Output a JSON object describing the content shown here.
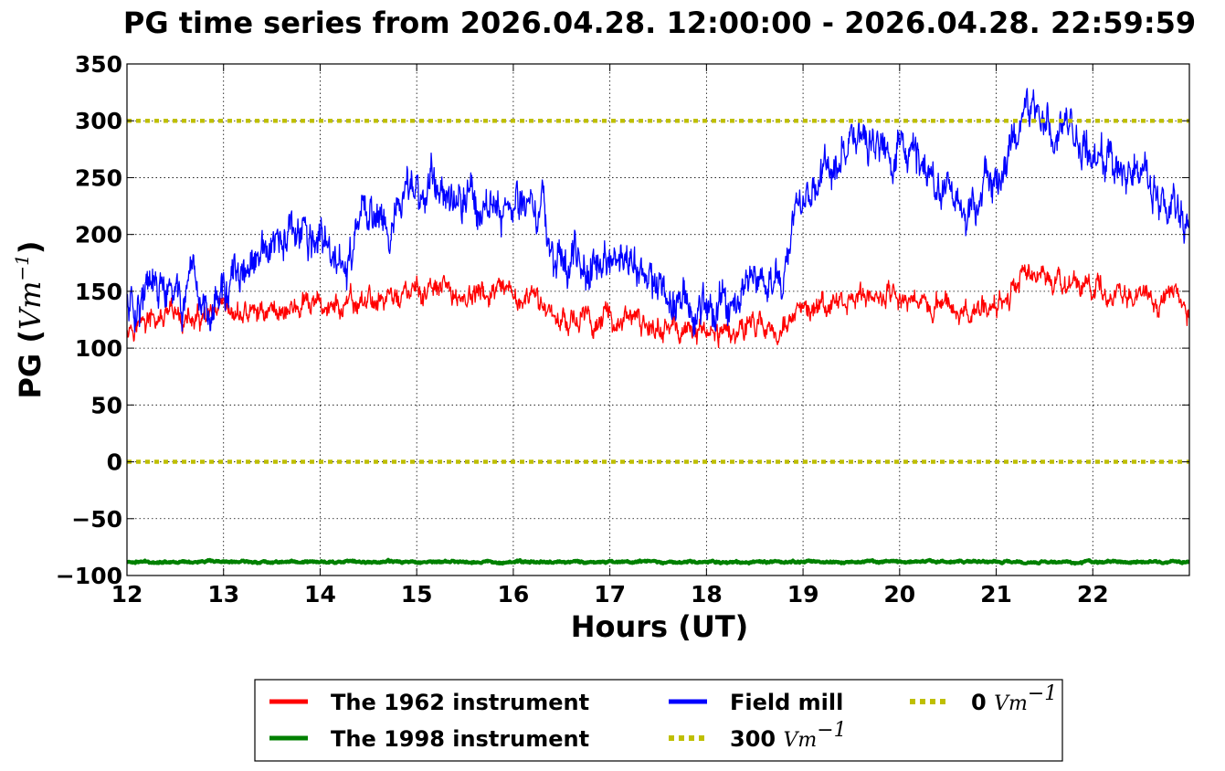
{
  "colors": {
    "instrument_1962": "#ff0000",
    "instrument_1998": "#008000",
    "field_mill": "#0000ff",
    "reference_lines": "#bfbf00",
    "grid": "#000000",
    "axes": "#000000"
  },
  "chart_data": {
    "type": "line",
    "title": "PG time series from 2026.04.28. 12:00:00 - 2026.04.28. 22:59:59",
    "xlabel": "Hours (UT)",
    "ylabel": {
      "text": "PG (",
      "unit_base": "Vm",
      "unit_exp": "−1",
      "close": ")"
    },
    "xlim": [
      12,
      23
    ],
    "ylim": [
      -100,
      350
    ],
    "x_ticks": [
      12,
      13,
      14,
      15,
      16,
      17,
      18,
      19,
      20,
      21,
      22
    ],
    "y_ticks": [
      -100,
      -50,
      0,
      50,
      100,
      150,
      200,
      250,
      300,
      350
    ],
    "y_tick_labels": [
      "−100",
      "−50",
      "0",
      "50",
      "100",
      "150",
      "200",
      "250",
      "300",
      "350"
    ],
    "grid": true,
    "legend_placement": "below chart, 3 columns",
    "legend": [
      {
        "label": "The 1962 instrument",
        "unit": "",
        "series": "instrument_1962",
        "style": "solid"
      },
      {
        "label": "The 1998 instrument",
        "unit": "",
        "series": "instrument_1998",
        "style": "solid"
      },
      {
        "label": "Field mill",
        "unit": "",
        "series": "field_mill",
        "style": "solid"
      },
      {
        "label": "300 ",
        "unit": "Vm",
        "unit_exp": "−1",
        "series": "ref_300",
        "style": "dotted"
      },
      {
        "label": "0 ",
        "unit": "Vm",
        "unit_exp": "−1",
        "series": "ref_0",
        "style": "dotted"
      }
    ],
    "series": [
      {
        "name": "The 1962 instrument",
        "key": "instrument_1962",
        "noise": 9,
        "points": [
          [
            12.0,
            122
          ],
          [
            12.25,
            123
          ],
          [
            12.5,
            126
          ],
          [
            12.75,
            122
          ],
          [
            13.0,
            127
          ],
          [
            13.25,
            130
          ],
          [
            13.5,
            134
          ],
          [
            13.75,
            135
          ],
          [
            14.0,
            137
          ],
          [
            14.25,
            135
          ],
          [
            14.5,
            142
          ],
          [
            14.75,
            145
          ],
          [
            15.0,
            148
          ],
          [
            15.25,
            150
          ],
          [
            15.5,
            145
          ],
          [
            15.75,
            147
          ],
          [
            16.0,
            143
          ],
          [
            16.25,
            140
          ],
          [
            16.5,
            128
          ],
          [
            16.75,
            124
          ],
          [
            17.0,
            127
          ],
          [
            17.25,
            123
          ],
          [
            17.5,
            118
          ],
          [
            17.75,
            115
          ],
          [
            18.0,
            114
          ],
          [
            18.25,
            117
          ],
          [
            18.5,
            121
          ],
          [
            18.75,
            118
          ],
          [
            19.0,
            129
          ],
          [
            19.25,
            135
          ],
          [
            19.5,
            143
          ],
          [
            19.75,
            146
          ],
          [
            20.0,
            145
          ],
          [
            20.25,
            142
          ],
          [
            20.5,
            138
          ],
          [
            20.75,
            128
          ],
          [
            21.0,
            143
          ],
          [
            21.25,
            158
          ],
          [
            21.4,
            166
          ],
          [
            21.6,
            155
          ],
          [
            21.8,
            157
          ],
          [
            22.0,
            152
          ],
          [
            22.25,
            150
          ],
          [
            22.5,
            148
          ],
          [
            22.75,
            140
          ],
          [
            23.0,
            133
          ]
        ]
      },
      {
        "name": "The 1998 instrument",
        "key": "instrument_1998",
        "noise": 0.8,
        "points": [
          [
            12.0,
            -88
          ],
          [
            23.0,
            -88
          ]
        ]
      },
      {
        "name": "Field mill",
        "key": "field_mill",
        "noise": 16,
        "points": [
          [
            12.0,
            140
          ],
          [
            12.25,
            150
          ],
          [
            12.5,
            143
          ],
          [
            12.75,
            138
          ],
          [
            13.0,
            150
          ],
          [
            13.25,
            165
          ],
          [
            13.5,
            185
          ],
          [
            13.75,
            198
          ],
          [
            14.0,
            190
          ],
          [
            14.25,
            170
          ],
          [
            14.5,
            220
          ],
          [
            14.75,
            215
          ],
          [
            15.0,
            240
          ],
          [
            15.25,
            245
          ],
          [
            15.5,
            235
          ],
          [
            15.75,
            225
          ],
          [
            16.0,
            230
          ],
          [
            16.25,
            222
          ],
          [
            16.5,
            175
          ],
          [
            16.75,
            175
          ],
          [
            17.0,
            178
          ],
          [
            17.25,
            172
          ],
          [
            17.5,
            152
          ],
          [
            17.75,
            140
          ],
          [
            18.0,
            138
          ],
          [
            18.25,
            148
          ],
          [
            18.5,
            160
          ],
          [
            18.75,
            165
          ],
          [
            19.0,
            225
          ],
          [
            19.25,
            250
          ],
          [
            19.5,
            280
          ],
          [
            19.75,
            285
          ],
          [
            20.0,
            275
          ],
          [
            20.25,
            258
          ],
          [
            20.5,
            240
          ],
          [
            20.75,
            218
          ],
          [
            21.0,
            250
          ],
          [
            21.25,
            290
          ],
          [
            21.35,
            312
          ],
          [
            21.5,
            300
          ],
          [
            21.75,
            285
          ],
          [
            22.0,
            275
          ],
          [
            22.25,
            265
          ],
          [
            22.5,
            255
          ],
          [
            22.75,
            235
          ],
          [
            23.0,
            218
          ]
        ]
      }
    ],
    "reference_lines": [
      {
        "name": "300 Vm−1",
        "key": "ref_300",
        "y": 300
      },
      {
        "name": "0 Vm−1",
        "key": "ref_0",
        "y": 0
      }
    ]
  }
}
